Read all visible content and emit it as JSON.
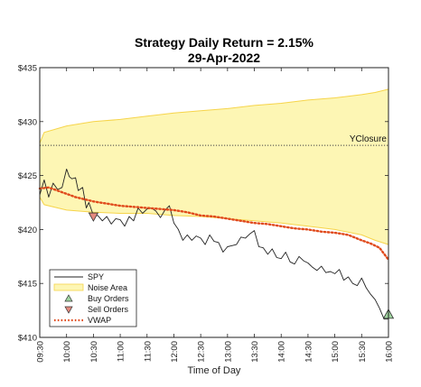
{
  "chart_data": {
    "type": "line",
    "title": "Strategy Daily Return = 2.15%",
    "subtitle": "29-Apr-2022",
    "xlabel": "Time of Day",
    "ylabel": "",
    "x_range_minutes": [
      570,
      960
    ],
    "ylim": [
      410,
      435
    ],
    "x_ticks": [
      "09:30",
      "10:00",
      "10:30",
      "11:00",
      "11:30",
      "12:00",
      "12:30",
      "13:00",
      "13:30",
      "14:00",
      "14:30",
      "15:00",
      "15:30",
      "16:00"
    ],
    "y_ticks": [
      "$410",
      "$415",
      "$420",
      "$425",
      "$430",
      "$435"
    ],
    "y_tick_values": [
      410,
      415,
      420,
      425,
      430,
      435
    ],
    "grid": false,
    "legend_position": "bottom-left",
    "legend": [
      "SPY",
      "Noise Area",
      "Buy Orders",
      "Sell Orders",
      "VWAP"
    ],
    "yclosure": {
      "label": "YClosure",
      "value": 427.8
    },
    "noise_area": {
      "x": [
        "09:30",
        "09:35",
        "10:00",
        "10:30",
        "11:00",
        "11:30",
        "12:00",
        "12:30",
        "13:00",
        "13:30",
        "14:00",
        "14:30",
        "15:00",
        "15:30",
        "15:45",
        "16:00"
      ],
      "upper": [
        428.0,
        429.0,
        429.6,
        430.0,
        430.2,
        430.5,
        430.8,
        431.0,
        431.2,
        431.5,
        431.7,
        432.0,
        432.2,
        432.5,
        432.7,
        433.0
      ],
      "lower": [
        423.0,
        422.3,
        421.8,
        421.6,
        421.5,
        421.5,
        421.3,
        421.2,
        421.0,
        420.8,
        420.6,
        420.3,
        420.0,
        419.5,
        419.0,
        418.6
      ]
    },
    "series": [
      {
        "name": "SPY",
        "x": [
          "09:30",
          "09:35",
          "09:40",
          "09:45",
          "09:50",
          "09:55",
          "10:00",
          "10:03",
          "10:06",
          "10:10",
          "10:13",
          "10:18",
          "10:22",
          "10:25",
          "10:30",
          "10:35",
          "10:40",
          "10:45",
          "10:50",
          "10:55",
          "11:00",
          "11:05",
          "11:10",
          "11:15",
          "11:20",
          "11:25",
          "11:30",
          "11:35",
          "11:40",
          "11:45",
          "11:50",
          "11:55",
          "12:00",
          "12:05",
          "12:10",
          "12:15",
          "12:20",
          "12:25",
          "12:30",
          "12:35",
          "12:40",
          "12:45",
          "12:50",
          "12:55",
          "13:00",
          "13:05",
          "13:10",
          "13:15",
          "13:20",
          "13:25",
          "13:30",
          "13:35",
          "13:40",
          "13:45",
          "13:50",
          "13:55",
          "14:00",
          "14:05",
          "14:10",
          "14:15",
          "14:20",
          "14:25",
          "14:30",
          "14:35",
          "14:40",
          "14:45",
          "14:50",
          "14:55",
          "15:00",
          "15:05",
          "15:10",
          "15:15",
          "15:20",
          "15:25",
          "15:30",
          "15:35",
          "15:40",
          "15:45",
          "15:50",
          "15:55",
          "16:00"
        ],
        "values": [
          423.2,
          424.6,
          423.0,
          424.3,
          423.7,
          423.9,
          425.6,
          424.9,
          424.7,
          424.8,
          423.6,
          423.9,
          422.0,
          422.5,
          421.3,
          421.3,
          420.8,
          421.2,
          420.5,
          421.0,
          420.9,
          420.3,
          421.2,
          420.8,
          422.0,
          421.5,
          421.9,
          422.0,
          421.7,
          421.1,
          421.8,
          422.2,
          420.6,
          420.0,
          419.0,
          419.5,
          419.0,
          419.4,
          419.2,
          418.6,
          419.5,
          418.9,
          418.8,
          417.9,
          418.4,
          418.5,
          418.6,
          419.3,
          419.2,
          419.6,
          419.9,
          418.4,
          418.3,
          417.7,
          418.2,
          417.4,
          417.3,
          417.9,
          417.0,
          416.8,
          417.5,
          417.1,
          416.9,
          416.5,
          416.2,
          416.6,
          416.0,
          416.1,
          415.9,
          416.3,
          415.3,
          415.6,
          415.0,
          414.8,
          415.5,
          414.6,
          414.0,
          413.5,
          412.7,
          411.7,
          411.7
        ]
      },
      {
        "name": "VWAP",
        "x": [
          "09:30",
          "09:40",
          "09:50",
          "10:00",
          "10:10",
          "10:20",
          "10:30",
          "10:45",
          "11:00",
          "11:15",
          "11:30",
          "11:45",
          "12:00",
          "12:15",
          "12:30",
          "12:45",
          "13:00",
          "13:15",
          "13:30",
          "13:45",
          "14:00",
          "14:15",
          "14:30",
          "14:45",
          "15:00",
          "15:15",
          "15:30",
          "15:40",
          "15:50",
          "16:00"
        ],
        "values": [
          423.8,
          423.9,
          423.6,
          423.3,
          423.0,
          422.8,
          422.6,
          422.4,
          422.2,
          422.1,
          422.0,
          421.9,
          421.8,
          421.6,
          421.3,
          421.2,
          421.0,
          420.8,
          420.6,
          420.5,
          420.3,
          420.1,
          420.0,
          419.8,
          419.7,
          419.5,
          419.0,
          418.7,
          418.3,
          417.2
        ]
      }
    ],
    "buy_orders": [
      {
        "x": "16:00",
        "value": 412.1
      }
    ],
    "sell_orders": [
      {
        "x": "10:30",
        "value": 421.2
      }
    ],
    "colors": {
      "spy": "#222222",
      "noise_fill": "#fdf6b4",
      "noise_edge": "#f6d44a",
      "buy": "#9fd39f",
      "sell": "#e48a7f",
      "vwap": "#e04a1c",
      "yclosure": "#444444"
    }
  }
}
